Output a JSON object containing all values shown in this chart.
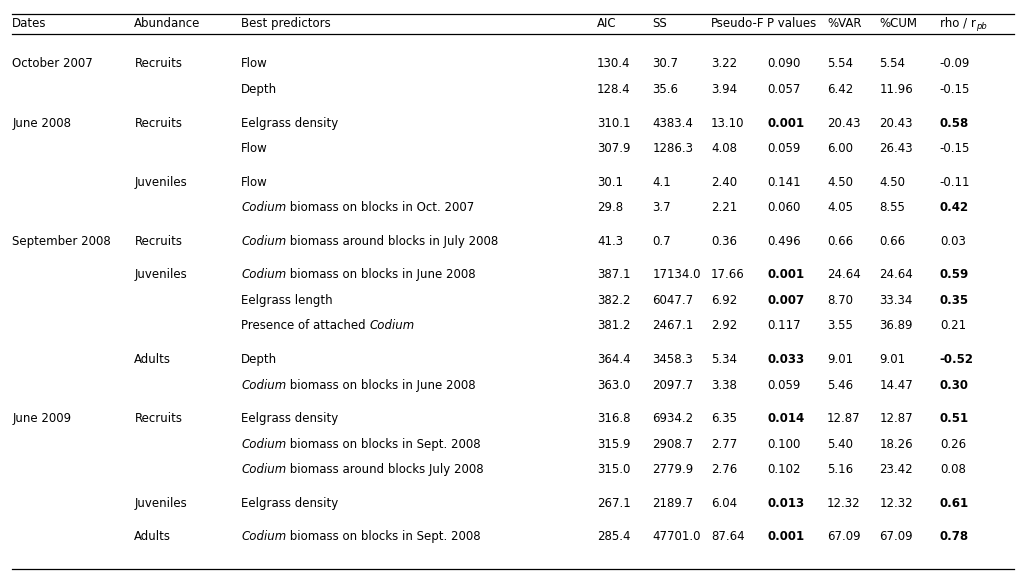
{
  "rows": [
    {
      "date": "October 2007",
      "abundance": "Recruits",
      "entries": [
        {
          "predictor": [
            [
              "Flow",
              false
            ]
          ],
          "aic": "130.4",
          "ss": "30.7",
          "pf": "3.22",
          "pval": "0.090",
          "pval_bold": false,
          "var": "5.54",
          "cum": "5.54",
          "rho": "-0.09",
          "rho_bold": false
        },
        {
          "predictor": [
            [
              "Depth",
              false
            ]
          ],
          "aic": "128.4",
          "ss": "35.6",
          "pf": "3.94",
          "pval": "0.057",
          "pval_bold": false,
          "var": "6.42",
          "cum": "11.96",
          "rho": "-0.15",
          "rho_bold": false
        }
      ]
    },
    {
      "date": "June 2008",
      "abundance": "Recruits",
      "entries": [
        {
          "predictor": [
            [
              "Eelgrass density",
              false
            ]
          ],
          "aic": "310.1",
          "ss": "4383.4",
          "pf": "13.10",
          "pval": "0.001",
          "pval_bold": true,
          "var": "20.43",
          "cum": "20.43",
          "rho": "0.58",
          "rho_bold": true
        },
        {
          "predictor": [
            [
              "Flow",
              false
            ]
          ],
          "aic": "307.9",
          "ss": "1286.3",
          "pf": "4.08",
          "pval": "0.059",
          "pval_bold": false,
          "var": "6.00",
          "cum": "26.43",
          "rho": "-0.15",
          "rho_bold": false
        }
      ]
    },
    {
      "date": "",
      "abundance": "Juveniles",
      "entries": [
        {
          "predictor": [
            [
              "Flow",
              false
            ]
          ],
          "aic": "30.1",
          "ss": "4.1",
          "pf": "2.40",
          "pval": "0.141",
          "pval_bold": false,
          "var": "4.50",
          "cum": "4.50",
          "rho": "-0.11",
          "rho_bold": false
        },
        {
          "predictor": [
            [
              "Codium",
              true
            ],
            [
              " biomass on blocks in Oct. 2007",
              false
            ]
          ],
          "aic": "29.8",
          "ss": "3.7",
          "pf": "2.21",
          "pval": "0.060",
          "pval_bold": false,
          "var": "4.05",
          "cum": "8.55",
          "rho": "0.42",
          "rho_bold": true
        }
      ]
    },
    {
      "date": "September 2008",
      "abundance": "Recruits",
      "entries": [
        {
          "predictor": [
            [
              "Codium",
              true
            ],
            [
              " biomass around blocks in July 2008",
              false
            ]
          ],
          "aic": "41.3",
          "ss": "0.7",
          "pf": "0.36",
          "pval": "0.496",
          "pval_bold": false,
          "var": "0.66",
          "cum": "0.66",
          "rho": "0.03",
          "rho_bold": false
        }
      ]
    },
    {
      "date": "",
      "abundance": "Juveniles",
      "entries": [
        {
          "predictor": [
            [
              "Codium",
              true
            ],
            [
              " biomass on blocks in June 2008",
              false
            ]
          ],
          "aic": "387.1",
          "ss": "17134.0",
          "pf": "17.66",
          "pval": "0.001",
          "pval_bold": true,
          "var": "24.64",
          "cum": "24.64",
          "rho": "0.59",
          "rho_bold": true
        },
        {
          "predictor": [
            [
              "Eelgrass length",
              false
            ]
          ],
          "aic": "382.2",
          "ss": "6047.7",
          "pf": "6.92",
          "pval": "0.007",
          "pval_bold": true,
          "var": "8.70",
          "cum": "33.34",
          "rho": "0.35",
          "rho_bold": true
        },
        {
          "predictor": [
            [
              "Presence of attached ",
              false
            ],
            [
              "Codium",
              true
            ]
          ],
          "aic": "381.2",
          "ss": "2467.1",
          "pf": "2.92",
          "pval": "0.117",
          "pval_bold": false,
          "var": "3.55",
          "cum": "36.89",
          "rho": "0.21",
          "rho_bold": false
        }
      ]
    },
    {
      "date": "",
      "abundance": "Adults",
      "entries": [
        {
          "predictor": [
            [
              "Depth",
              false
            ]
          ],
          "aic": "364.4",
          "ss": "3458.3",
          "pf": "5.34",
          "pval": "0.033",
          "pval_bold": true,
          "var": "9.01",
          "cum": "9.01",
          "rho": "-0.52",
          "rho_bold": true
        },
        {
          "predictor": [
            [
              "Codium",
              true
            ],
            [
              " biomass on blocks in June 2008",
              false
            ]
          ],
          "aic": "363.0",
          "ss": "2097.7",
          "pf": "3.38",
          "pval": "0.059",
          "pval_bold": false,
          "var": "5.46",
          "cum": "14.47",
          "rho": "0.30",
          "rho_bold": true
        }
      ]
    },
    {
      "date": "June 2009",
      "abundance": "Recruits",
      "entries": [
        {
          "predictor": [
            [
              "Eelgrass density",
              false
            ]
          ],
          "aic": "316.8",
          "ss": "6934.2",
          "pf": "6.35",
          "pval": "0.014",
          "pval_bold": true,
          "var": "12.87",
          "cum": "12.87",
          "rho": "0.51",
          "rho_bold": true
        },
        {
          "predictor": [
            [
              "Codium",
              true
            ],
            [
              " biomass on blocks in Sept. 2008",
              false
            ]
          ],
          "aic": "315.9",
          "ss": "2908.7",
          "pf": "2.77",
          "pval": "0.100",
          "pval_bold": false,
          "var": "5.40",
          "cum": "18.26",
          "rho": "0.26",
          "rho_bold": false
        },
        {
          "predictor": [
            [
              "Codium",
              true
            ],
            [
              " biomass around blocks July 2008",
              false
            ]
          ],
          "aic": "315.0",
          "ss": "2779.9",
          "pf": "2.76",
          "pval": "0.102",
          "pval_bold": false,
          "var": "5.16",
          "cum": "23.42",
          "rho": "0.08",
          "rho_bold": false
        }
      ]
    },
    {
      "date": "",
      "abundance": "Juveniles",
      "entries": [
        {
          "predictor": [
            [
              "Eelgrass density",
              false
            ]
          ],
          "aic": "267.1",
          "ss": "2189.7",
          "pf": "6.04",
          "pval": "0.013",
          "pval_bold": true,
          "var": "12.32",
          "cum": "12.32",
          "rho": "0.61",
          "rho_bold": true
        }
      ]
    },
    {
      "date": "",
      "abundance": "Adults",
      "entries": [
        {
          "predictor": [
            [
              "Codium",
              true
            ],
            [
              " biomass on blocks in Sept. 2008",
              false
            ]
          ],
          "aic": "285.4",
          "ss": "47701.0",
          "pf": "87.64",
          "pval": "0.001",
          "pval_bold": true,
          "var": "67.09",
          "cum": "67.09",
          "rho": "0.78",
          "rho_bold": true
        }
      ]
    }
  ],
  "col_x_frac": {
    "date": 0.012,
    "abundance": 0.131,
    "predictor": 0.235,
    "aic": 0.582,
    "ss": 0.636,
    "pf": 0.693,
    "pval": 0.748,
    "var": 0.806,
    "cum": 0.857,
    "rho": 0.916
  },
  "fig_width": 10.26,
  "fig_height": 5.79,
  "font_size": 8.5,
  "bg_color": "#ffffff",
  "text_color": "#000000",
  "line_color": "#000000"
}
